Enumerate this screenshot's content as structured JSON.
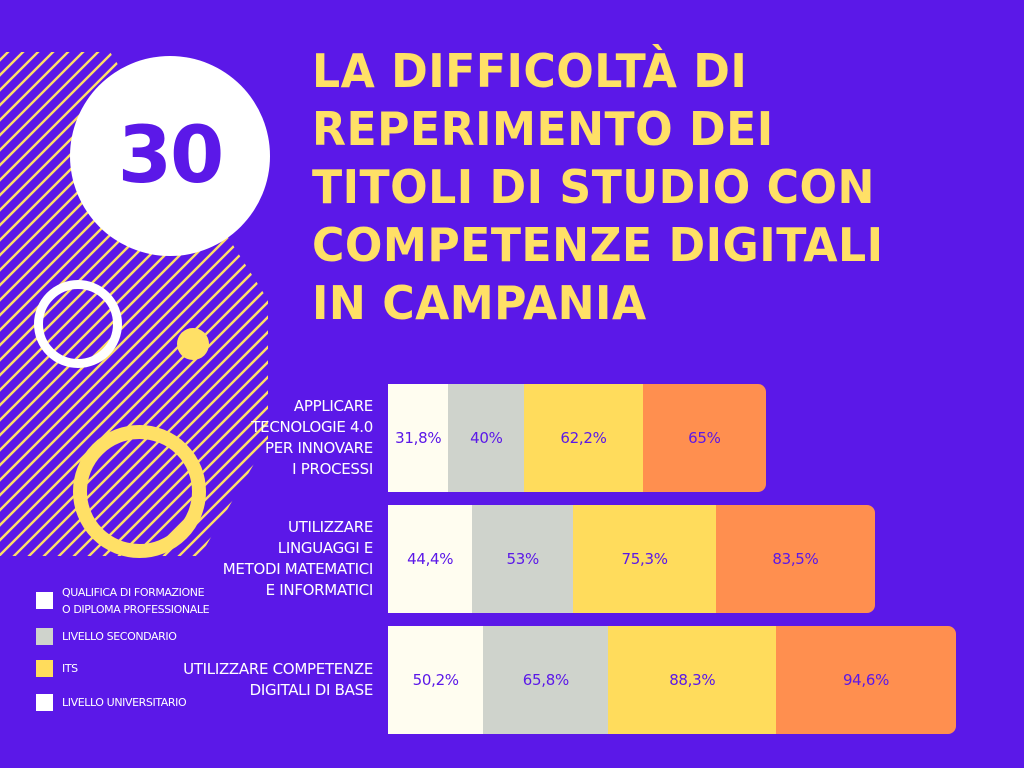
{
  "title_lines": [
    "LA DIFFICOLTÀ DI",
    "REPERIMENTO DEI",
    "TITOLI DI STUDIO CON",
    "COMPETENZE DIGITALI",
    "IN CAMPANIA"
  ],
  "badge": "30",
  "colors": {
    "background": "#5b18e8",
    "title": "#ffe066",
    "value_text": "#5b18e8",
    "series": [
      "#fffdf0",
      "#cfd3cc",
      "#ffdc5c",
      "#ff8f4f"
    ]
  },
  "legend": [
    {
      "lines": [
        "QUALIFICA DI FORMAZIONE",
        "O DIPLOMA PROFESSIONALE"
      ],
      "color": "#ffffff"
    },
    {
      "lines": [
        "LIVELLO SECONDARIO"
      ],
      "color": "#cfd3cc"
    },
    {
      "lines": [
        "ITS"
      ],
      "color": "#ffdc5c"
    },
    {
      "lines": [
        "LIVELLO UNIVERSITARIO"
      ],
      "color": "#ffffff"
    }
  ],
  "chart_data": {
    "type": "bar",
    "orientation": "horizontal",
    "stacked": true,
    "title": "LA DIFFICOLTÀ DI REPERIMENTO DEI TITOLI DI STUDIO CON COMPETENZE DIGITALI IN CAMPANIA",
    "categories": [
      [
        "APPLICARE",
        "TECNOLOGIE 4.0",
        "PER INNOVARE",
        "I PROCESSI"
      ],
      [
        "UTILIZZARE",
        "LINGUAGGI E",
        "METODI MATEMATICI",
        "E INFORMATICI"
      ],
      [
        "UTILIZZARE COMPETENZE",
        "DIGITALI DI BASE"
      ]
    ],
    "series": [
      {
        "name": "QUALIFICA DI FORMAZIONE O DIPLOMA PROFESSIONALE",
        "values": [
          31.8,
          44.4,
          50.2
        ],
        "labels": [
          "31,8%",
          "44,4%",
          "50,2%"
        ]
      },
      {
        "name": "LIVELLO SECONDARIO",
        "values": [
          40,
          53,
          65.8
        ],
        "labels": [
          "40%",
          "53%",
          "65,8%"
        ]
      },
      {
        "name": "ITS",
        "values": [
          62.2,
          75.3,
          88.3
        ],
        "labels": [
          "62,2%",
          "75,3%",
          "88,3%"
        ]
      },
      {
        "name": "LIVELLO UNIVERSITARIO",
        "values": [
          65,
          83.5,
          94.6
        ],
        "labels": [
          "65%",
          "83,5%",
          "94,6%"
        ]
      }
    ],
    "legend_position": "bottom-left",
    "grid": false
  }
}
